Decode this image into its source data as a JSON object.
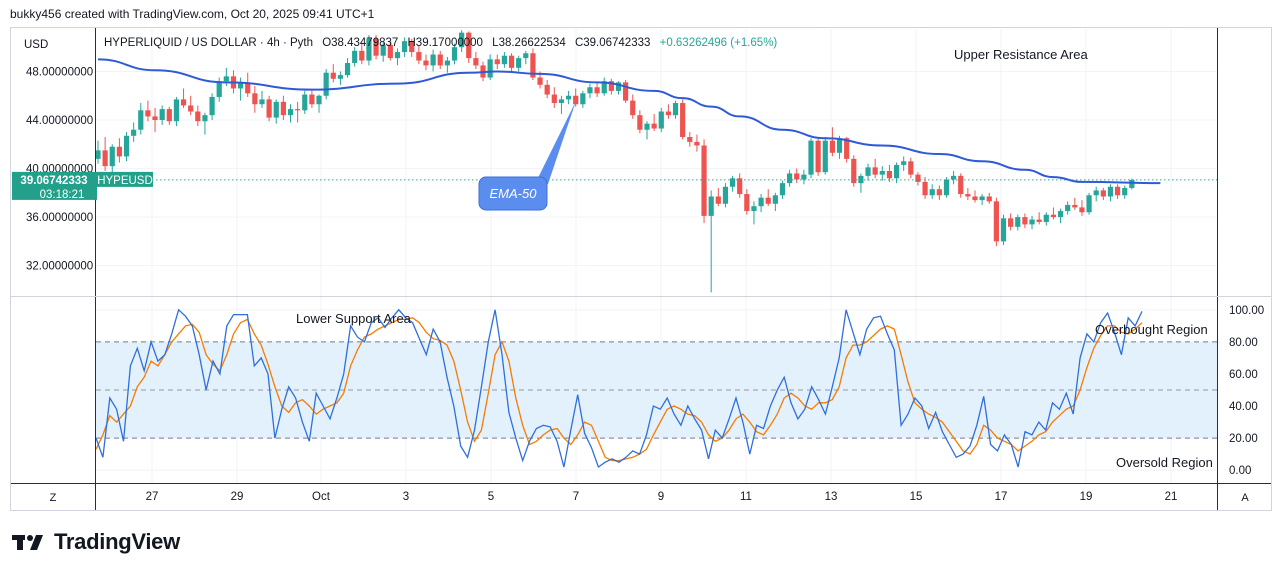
{
  "header": {
    "credit": "bukky456 created with TradingView.com, Oct 20, 2025 09:41 UTC+1"
  },
  "footer": {
    "brand": "TradingView"
  },
  "chart_data": [
    {
      "type": "candlestick",
      "currency": "USD",
      "legend": {
        "symbol": "HYPERLIQUID / US DOLLAR · 4h · Pyth",
        "open": "O38.43479837",
        "high": "H39.17000000",
        "low": "L38.26622534",
        "close": "C39.06742333",
        "change": "+0.63262496 (+1.65%)"
      },
      "y_ticks": [
        "48.00000000",
        "44.00000000",
        "40.00000000",
        "36.00000000",
        "32.00000000"
      ],
      "y_tick_values": [
        48,
        44,
        40,
        36,
        32
      ],
      "ylim": [
        29.5,
        51.5
      ],
      "price_label": {
        "value": "39.06742333",
        "countdown": "03:18:21",
        "symbol": "HYPEUSD"
      },
      "last_price": 39.06742333,
      "annotations": {
        "upper": "Upper Resistance Area",
        "ema": "EMA-50"
      },
      "candles": [
        [
          40.8,
          42.3,
          40.4,
          41.5
        ],
        [
          41.5,
          42.6,
          39.8,
          40.2
        ],
        [
          40.2,
          42.0,
          39.5,
          41.8
        ],
        [
          41.8,
          42.5,
          40.5,
          41.0
        ],
        [
          41.0,
          43.0,
          40.6,
          42.7
        ],
        [
          42.7,
          43.8,
          42.2,
          43.2
        ],
        [
          43.2,
          45.4,
          42.8,
          44.8
        ],
        [
          44.8,
          45.6,
          43.9,
          44.3
        ],
        [
          44.3,
          45.0,
          43.0,
          44.0
        ],
        [
          44.0,
          45.2,
          43.6,
          44.9
        ],
        [
          44.9,
          45.1,
          43.6,
          43.9
        ],
        [
          43.9,
          45.9,
          43.5,
          45.7
        ],
        [
          45.7,
          46.6,
          45.0,
          45.2
        ],
        [
          45.2,
          46.0,
          44.4,
          44.7
        ],
        [
          44.7,
          45.2,
          43.5,
          43.9
        ],
        [
          43.9,
          44.6,
          42.8,
          44.4
        ],
        [
          44.4,
          46.2,
          44.0,
          45.9
        ],
        [
          45.9,
          47.5,
          45.5,
          47.2
        ],
        [
          47.2,
          48.3,
          46.8,
          47.6
        ],
        [
          47.6,
          48.1,
          46.2,
          46.6
        ],
        [
          46.6,
          47.5,
          45.6,
          47.1
        ],
        [
          47.1,
          47.9,
          45.9,
          46.2
        ],
        [
          46.2,
          46.8,
          44.6,
          45.3
        ],
        [
          45.3,
          46.4,
          45.0,
          45.7
        ],
        [
          45.7,
          46.0,
          43.9,
          44.2
        ],
        [
          44.2,
          45.7,
          43.7,
          45.5
        ],
        [
          45.5,
          46.0,
          44.0,
          44.4
        ],
        [
          44.4,
          45.3,
          43.8,
          44.9
        ],
        [
          44.9,
          45.5,
          43.8,
          44.8
        ],
        [
          44.8,
          46.4,
          44.5,
          46.1
        ],
        [
          46.1,
          46.5,
          45.0,
          45.3
        ],
        [
          45.3,
          46.1,
          44.6,
          46.0
        ],
        [
          46.0,
          48.2,
          45.7,
          47.9
        ],
        [
          47.9,
          48.6,
          47.1,
          47.4
        ],
        [
          47.4,
          48.0,
          46.9,
          47.7
        ],
        [
          47.7,
          49.1,
          47.5,
          48.7
        ],
        [
          48.7,
          50.0,
          48.4,
          49.7
        ],
        [
          49.7,
          50.4,
          48.6,
          48.9
        ],
        [
          48.9,
          51.0,
          48.5,
          50.7
        ],
        [
          50.7,
          51.0,
          49.0,
          49.3
        ],
        [
          49.3,
          50.4,
          48.8,
          50.2
        ],
        [
          50.2,
          50.5,
          48.9,
          49.1
        ],
        [
          49.1,
          49.9,
          48.5,
          49.6
        ],
        [
          49.6,
          50.8,
          49.2,
          50.5
        ],
        [
          50.5,
          50.7,
          49.2,
          49.6
        ],
        [
          49.6,
          50.1,
          48.6,
          48.9
        ],
        [
          48.9,
          49.4,
          48.1,
          48.5
        ],
        [
          48.5,
          49.8,
          48.0,
          49.4
        ],
        [
          49.4,
          49.7,
          48.2,
          48.5
        ],
        [
          48.5,
          49.2,
          47.9,
          48.9
        ],
        [
          48.9,
          50.3,
          48.6,
          50.0
        ],
        [
          50.0,
          51.4,
          49.6,
          51.2
        ],
        [
          51.2,
          51.3,
          48.7,
          49.1
        ],
        [
          49.1,
          49.6,
          48.2,
          48.5
        ],
        [
          48.5,
          48.8,
          47.2,
          47.5
        ],
        [
          47.5,
          49.4,
          47.3,
          49.0
        ],
        [
          49.0,
          49.4,
          48.2,
          48.6
        ],
        [
          48.6,
          49.6,
          48.3,
          49.3
        ],
        [
          49.3,
          49.5,
          48.0,
          48.3
        ],
        [
          48.3,
          49.3,
          48.0,
          49.1
        ],
        [
          49.1,
          49.7,
          48.6,
          49.5
        ],
        [
          49.5,
          49.9,
          47.3,
          47.5
        ],
        [
          47.5,
          48.0,
          46.6,
          46.9
        ],
        [
          46.9,
          47.3,
          45.8,
          46.1
        ],
        [
          46.1,
          46.7,
          45.0,
          45.4
        ],
        [
          45.4,
          46.0,
          44.5,
          45.7
        ],
        [
          45.7,
          46.4,
          45.3,
          46.0
        ],
        [
          46.0,
          46.6,
          45.1,
          45.3
        ],
        [
          45.3,
          46.4,
          45.0,
          46.2
        ],
        [
          46.2,
          47.0,
          45.8,
          46.7
        ],
        [
          46.7,
          47.1,
          45.9,
          46.2
        ],
        [
          46.2,
          47.5,
          46.0,
          47.2
        ],
        [
          47.2,
          47.4,
          46.1,
          46.4
        ],
        [
          46.4,
          47.2,
          46.1,
          47.1
        ],
        [
          47.1,
          47.3,
          45.4,
          45.6
        ],
        [
          45.6,
          46.1,
          44.1,
          44.4
        ],
        [
          44.4,
          44.8,
          42.9,
          43.2
        ],
        [
          43.2,
          43.9,
          42.4,
          43.7
        ],
        [
          43.7,
          44.5,
          43.1,
          43.3
        ],
        [
          43.3,
          45.0,
          43.0,
          44.7
        ],
        [
          44.7,
          45.3,
          44.1,
          44.4
        ],
        [
          44.4,
          45.6,
          44.1,
          45.4
        ],
        [
          45.4,
          45.7,
          42.4,
          42.6
        ],
        [
          42.6,
          43.0,
          41.8,
          42.2
        ],
        [
          42.2,
          42.8,
          41.4,
          41.9
        ],
        [
          41.9,
          42.4,
          35.5,
          36.1
        ],
        [
          36.1,
          38.2,
          29.8,
          37.7
        ],
        [
          37.7,
          38.4,
          36.9,
          37.1
        ],
        [
          37.1,
          38.8,
          36.8,
          38.5
        ],
        [
          38.5,
          39.4,
          38.1,
          39.2
        ],
        [
          39.2,
          39.6,
          37.6,
          37.9
        ],
        [
          37.9,
          38.3,
          36.2,
          36.5
        ],
        [
          36.5,
          37.3,
          35.4,
          36.9
        ],
        [
          36.9,
          37.9,
          36.4,
          37.6
        ],
        [
          37.6,
          38.3,
          36.9,
          37.1
        ],
        [
          37.1,
          38.0,
          36.5,
          37.8
        ],
        [
          37.8,
          39.0,
          37.5,
          38.8
        ],
        [
          38.8,
          39.9,
          38.5,
          39.6
        ],
        [
          39.6,
          40.0,
          38.8,
          39.1
        ],
        [
          39.1,
          39.9,
          38.7,
          39.5
        ],
        [
          39.5,
          42.5,
          39.2,
          42.3
        ],
        [
          42.3,
          42.6,
          39.4,
          39.7
        ],
        [
          39.7,
          42.6,
          39.5,
          42.3
        ],
        [
          42.3,
          43.4,
          41.0,
          41.3
        ],
        [
          41.3,
          42.7,
          40.8,
          42.5
        ],
        [
          42.5,
          42.6,
          40.5,
          40.8
        ],
        [
          40.8,
          41.1,
          38.5,
          38.8
        ],
        [
          38.8,
          39.6,
          38.0,
          39.4
        ],
        [
          39.4,
          40.4,
          39.0,
          40.1
        ],
        [
          40.1,
          40.8,
          39.2,
          39.5
        ],
        [
          39.5,
          40.2,
          39.0,
          39.8
        ],
        [
          39.8,
          40.3,
          38.9,
          39.2
        ],
        [
          39.2,
          40.5,
          38.8,
          40.3
        ],
        [
          40.3,
          41.0,
          39.8,
          40.6
        ],
        [
          40.6,
          40.9,
          39.2,
          39.5
        ],
        [
          39.5,
          39.7,
          38.6,
          38.9
        ],
        [
          38.9,
          39.3,
          37.5,
          37.8
        ],
        [
          37.8,
          38.7,
          37.5,
          38.3
        ],
        [
          38.3,
          38.6,
          37.4,
          37.8
        ],
        [
          37.8,
          39.3,
          37.6,
          39.1
        ],
        [
          39.1,
          39.8,
          38.7,
          39.4
        ],
        [
          39.4,
          39.6,
          37.6,
          37.9
        ],
        [
          37.9,
          38.4,
          37.4,
          37.7
        ],
        [
          37.7,
          38.2,
          37.2,
          37.4
        ],
        [
          37.4,
          37.9,
          37.0,
          37.7
        ],
        [
          37.7,
          38.0,
          37.1,
          37.3
        ],
        [
          37.3,
          37.6,
          33.6,
          34.0
        ],
        [
          34.0,
          36.2,
          33.7,
          35.9
        ],
        [
          35.9,
          36.3,
          34.9,
          35.2
        ],
        [
          35.2,
          36.2,
          34.9,
          36.0
        ],
        [
          36.0,
          36.3,
          35.1,
          35.4
        ],
        [
          35.4,
          36.1,
          35.0,
          35.8
        ],
        [
          35.8,
          36.4,
          35.4,
          35.6
        ],
        [
          35.6,
          36.4,
          35.3,
          36.2
        ],
        [
          36.2,
          36.8,
          35.8,
          36.0
        ],
        [
          36.0,
          36.7,
          35.5,
          36.5
        ],
        [
          36.5,
          37.3,
          36.2,
          37.0
        ],
        [
          37.0,
          37.6,
          36.6,
          36.8
        ],
        [
          36.8,
          37.4,
          36.1,
          36.4
        ],
        [
          36.4,
          38.0,
          36.2,
          37.8
        ],
        [
          37.8,
          38.5,
          37.3,
          38.2
        ],
        [
          38.2,
          38.4,
          37.4,
          37.7
        ],
        [
          37.7,
          38.7,
          37.3,
          38.5
        ],
        [
          38.5,
          38.7,
          37.5,
          37.8
        ],
        [
          37.8,
          38.6,
          37.5,
          38.4
        ],
        [
          38.4,
          39.17,
          38.27,
          39.07
        ]
      ],
      "ema50": [
        [
          0,
          49.0
        ],
        [
          8,
          48.1
        ],
        [
          18,
          47.1
        ],
        [
          30,
          46.5
        ],
        [
          42,
          47.0
        ],
        [
          52,
          47.9
        ],
        [
          56,
          48.0
        ],
        [
          62,
          47.8
        ],
        [
          70,
          47.1
        ],
        [
          78,
          46.4
        ],
        [
          82,
          45.8
        ],
        [
          86,
          45.1
        ],
        [
          90,
          44.3
        ],
        [
          96,
          43.2
        ],
        [
          102,
          42.5
        ],
        [
          110,
          41.9
        ],
        [
          118,
          41.2
        ],
        [
          124,
          40.6
        ],
        [
          130,
          39.9
        ],
        [
          134,
          39.3
        ],
        [
          138,
          38.9
        ],
        [
          149,
          38.8
        ]
      ]
    },
    {
      "type": "line",
      "y_ticks": [
        "100.00",
        "80.00",
        "60.00",
        "40.00",
        "20.00",
        "0.00"
      ],
      "y_tick_values": [
        100,
        80,
        60,
        40,
        20,
        0
      ],
      "bands": {
        "upper": 80,
        "middle": 50,
        "lower": 20
      },
      "ylim": [
        -8,
        108
      ],
      "annotations": {
        "lower_support": "Lower Support Area",
        "overbought": "Overbought Region",
        "oversold": "Oversold Region"
      },
      "x_tick_labels": [
        "27",
        "29",
        "Oct",
        "3",
        "5",
        "7",
        "9",
        "11",
        "13",
        "15",
        "17",
        "19",
        "21"
      ],
      "stoch_k": [
        20,
        8,
        45,
        38,
        18,
        65,
        76,
        62,
        80,
        68,
        72,
        85,
        100,
        96,
        90,
        72,
        50,
        68,
        60,
        90,
        97,
        97,
        97,
        65,
        70,
        60,
        20,
        38,
        52,
        45,
        30,
        18,
        48,
        40,
        32,
        45,
        60,
        90,
        83,
        80,
        92,
        95,
        89,
        95,
        100,
        95,
        92,
        82,
        72,
        88,
        80,
        58,
        40,
        15,
        8,
        25,
        52,
        80,
        100,
        72,
        36,
        20,
        6,
        18,
        26,
        28,
        27,
        18,
        2,
        25,
        47,
        23,
        14,
        2,
        5,
        7,
        5,
        8,
        12,
        10,
        22,
        40,
        38,
        45,
        35,
        28,
        40,
        32,
        25,
        7,
        25,
        20,
        32,
        45,
        30,
        10,
        28,
        26,
        40,
        50,
        58,
        42,
        32,
        38,
        52,
        44,
        35,
        52,
        70,
        100,
        86,
        72,
        88,
        95,
        96,
        85,
        75,
        28,
        35,
        45,
        40,
        26,
        36,
        24,
        16,
        8,
        10,
        15,
        28,
        46,
        16,
        12,
        22,
        16,
        2,
        24,
        22,
        30,
        25,
        42,
        38,
        48,
        35,
        70,
        85,
        80,
        92,
        98,
        86,
        72,
        95,
        90,
        99
      ],
      "stoch_d": [
        13,
        22,
        34,
        30,
        35,
        40,
        52,
        58,
        68,
        65,
        72,
        80,
        85,
        90,
        91,
        86,
        72,
        66,
        62,
        72,
        85,
        92,
        94,
        85,
        78,
        66,
        52,
        40,
        36,
        42,
        44,
        40,
        35,
        38,
        40,
        42,
        48,
        65,
        75,
        83,
        85,
        88,
        90,
        92,
        94,
        94,
        95,
        92,
        86,
        82,
        81,
        78,
        68,
        50,
        30,
        18,
        25,
        48,
        72,
        80,
        68,
        45,
        28,
        16,
        18,
        22,
        25,
        26,
        20,
        16,
        22,
        30,
        28,
        18,
        8,
        6,
        6,
        7,
        8,
        10,
        13,
        22,
        30,
        38,
        40,
        38,
        35,
        34,
        30,
        22,
        18,
        20,
        25,
        32,
        35,
        30,
        24,
        22,
        28,
        35,
        45,
        48,
        45,
        40,
        38,
        42,
        42,
        44,
        52,
        70,
        78,
        78,
        80,
        84,
        88,
        90,
        88,
        72,
        55,
        42,
        38,
        35,
        33,
        30,
        24,
        18,
        12,
        10,
        16,
        28,
        25,
        20,
        18,
        16,
        12,
        15,
        18,
        22,
        24,
        30,
        34,
        38,
        40,
        50,
        64,
        76,
        84,
        90,
        90,
        86,
        85,
        88,
        92
      ]
    }
  ],
  "axis_buttons": {
    "left": "Z",
    "right": "A"
  },
  "colors": {
    "up": "#26a69a",
    "down": "#ef5350",
    "ema": "#2f5ad6",
    "stoch_k": "#2f6fdb",
    "stoch_d": "#f57c00",
    "band_fill": "#e3f1fd",
    "price_label": "#22a08a",
    "callout": "#5b8def"
  }
}
